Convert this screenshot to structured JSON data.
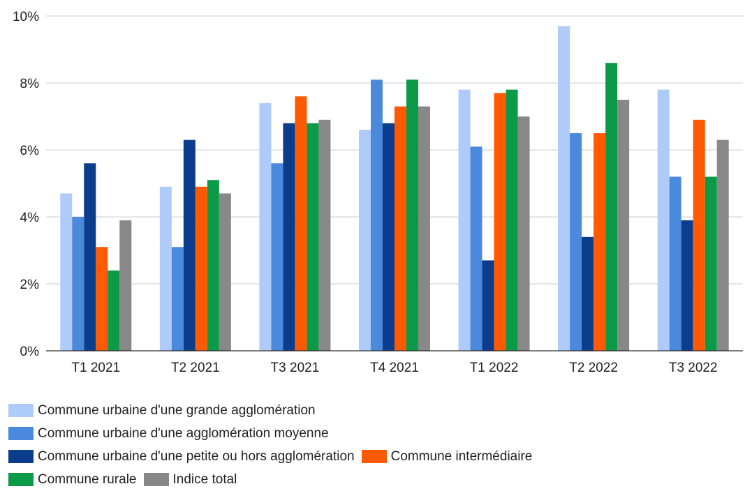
{
  "chart_data": {
    "type": "bar",
    "title": "",
    "xlabel": "",
    "ylabel": "",
    "ylim": [
      0,
      10
    ],
    "ytick_step": 2,
    "y_unit_suffix": "%",
    "grid": true,
    "legend_position": "bottom",
    "categories": [
      "T1 2021",
      "T2 2021",
      "T3 2021",
      "T4 2021",
      "T1 2022",
      "T2 2022",
      "T3 2022"
    ],
    "series": [
      {
        "name": "Commune urbaine d'une grande agglomération",
        "color": "#aecbfa",
        "values": [
          4.7,
          4.9,
          7.4,
          6.6,
          7.8,
          9.7,
          7.8
        ]
      },
      {
        "name": "Commune urbaine d'une agglomération moyenne",
        "color": "#4a89dc",
        "values": [
          4.0,
          3.1,
          5.6,
          8.1,
          6.1,
          6.5,
          5.2
        ]
      },
      {
        "name": "Commune urbaine d'une petite ou hors agglomération",
        "color": "#0b3d8c",
        "values": [
          5.6,
          6.3,
          6.8,
          6.8,
          2.7,
          3.4,
          3.9
        ]
      },
      {
        "name": "Commune intermédiaire",
        "color": "#ff5a00",
        "values": [
          3.1,
          4.9,
          7.6,
          7.3,
          7.7,
          6.5,
          6.9
        ]
      },
      {
        "name": "Commune rurale",
        "color": "#0a9a48",
        "values": [
          2.4,
          5.1,
          6.8,
          8.1,
          7.8,
          8.6,
          5.2
        ]
      },
      {
        "name": "Indice total",
        "color": "#888888",
        "values": [
          3.9,
          4.7,
          6.9,
          7.3,
          7.0,
          7.5,
          6.3
        ]
      }
    ]
  }
}
